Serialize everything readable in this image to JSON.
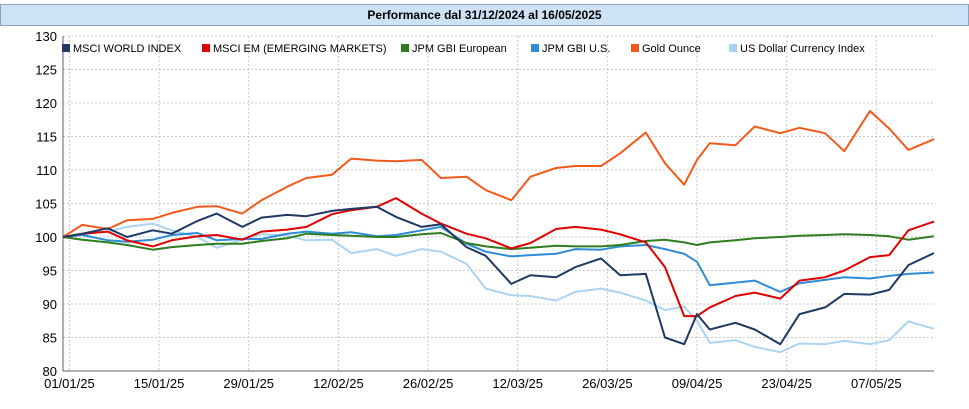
{
  "header": {
    "title": "Performance dal 31/12/2024 al 16/05/2025"
  },
  "chart_data": {
    "type": "line",
    "title": "Performance dal 31/12/2024 al 16/05/2025",
    "ylim": [
      80,
      130
    ],
    "y_ticks": [
      80,
      85,
      90,
      95,
      100,
      105,
      110,
      115,
      120,
      125,
      130
    ],
    "x_ticks": [
      "01/01/25",
      "15/01/25",
      "29/01/25",
      "12/02/25",
      "26/02/25",
      "12/03/25",
      "26/03/25",
      "09/04/25",
      "23/04/25",
      "07/05/25"
    ],
    "grid": true,
    "legend_position": "top",
    "x_start": "31/12/2024",
    "x_end": "16/05/2025",
    "series": [
      {
        "name": "MSCI WORLD INDEX",
        "color": "#1f3864",
        "points": [
          [
            "31/12/2024",
            100
          ],
          [
            "03/01/2025",
            100.5
          ],
          [
            "07/01/2025",
            101.3
          ],
          [
            "10/01/2025",
            100
          ],
          [
            "14/01/2025",
            101
          ],
          [
            "17/01/2025",
            100.5
          ],
          [
            "21/01/2025",
            102.4
          ],
          [
            "24/01/2025",
            103.5
          ],
          [
            "28/01/2025",
            101.5
          ],
          [
            "31/01/2025",
            102.9
          ],
          [
            "04/02/2025",
            103.3
          ],
          [
            "07/02/2025",
            103.1
          ],
          [
            "11/02/2025",
            103.9
          ],
          [
            "14/02/2025",
            104.2
          ],
          [
            "18/02/2025",
            104.5
          ],
          [
            "21/02/2025",
            103
          ],
          [
            "25/02/2025",
            101.5
          ],
          [
            "28/02/2025",
            101.9
          ],
          [
            "04/03/2025",
            98.5
          ],
          [
            "07/03/2025",
            97.2
          ],
          [
            "11/03/2025",
            93
          ],
          [
            "14/03/2025",
            94.3
          ],
          [
            "18/03/2025",
            94
          ],
          [
            "21/03/2025",
            95.5
          ],
          [
            "25/03/2025",
            96.8
          ],
          [
            "28/03/2025",
            94.3
          ],
          [
            "01/04/2025",
            94.5
          ],
          [
            "04/04/2025",
            85
          ],
          [
            "07/04/2025",
            84
          ],
          [
            "09/04/2025",
            88.5
          ],
          [
            "11/04/2025",
            86.2
          ],
          [
            "15/04/2025",
            87.2
          ],
          [
            "18/04/2025",
            86.2
          ],
          [
            "22/04/2025",
            84
          ],
          [
            "25/04/2025",
            88.5
          ],
          [
            "29/04/2025",
            89.5
          ],
          [
            "02/05/2025",
            91.5
          ],
          [
            "06/05/2025",
            91.4
          ],
          [
            "09/05/2025",
            92.1
          ],
          [
            "12/05/2025",
            95.8
          ],
          [
            "16/05/2025",
            97.6
          ]
        ]
      },
      {
        "name": "MSCI EM (EMERGING MARKETS)",
        "color": "#e00000",
        "points": [
          [
            "31/12/2024",
            100
          ],
          [
            "03/01/2025",
            100.5
          ],
          [
            "07/01/2025",
            100.8
          ],
          [
            "10/01/2025",
            99.5
          ],
          [
            "14/01/2025",
            98.6
          ],
          [
            "17/01/2025",
            99.5
          ],
          [
            "21/01/2025",
            100.1
          ],
          [
            "24/01/2025",
            100.3
          ],
          [
            "28/01/2025",
            99.6
          ],
          [
            "31/01/2025",
            100.8
          ],
          [
            "04/02/2025",
            101.1
          ],
          [
            "07/02/2025",
            101.5
          ],
          [
            "11/02/2025",
            103.4
          ],
          [
            "14/02/2025",
            104
          ],
          [
            "18/02/2025",
            104.5
          ],
          [
            "21/02/2025",
            105.8
          ],
          [
            "25/02/2025",
            103.5
          ],
          [
            "28/02/2025",
            102
          ],
          [
            "04/03/2025",
            100.5
          ],
          [
            "07/03/2025",
            99.8
          ],
          [
            "11/03/2025",
            98.3
          ],
          [
            "14/03/2025",
            99.1
          ],
          [
            "18/03/2025",
            101.2
          ],
          [
            "21/03/2025",
            101.5
          ],
          [
            "25/03/2025",
            101.1
          ],
          [
            "28/03/2025",
            100.4
          ],
          [
            "01/04/2025",
            99.2
          ],
          [
            "04/04/2025",
            95.5
          ],
          [
            "07/04/2025",
            88.2
          ],
          [
            "09/04/2025",
            88.2
          ],
          [
            "11/04/2025",
            89.5
          ],
          [
            "15/04/2025",
            91.2
          ],
          [
            "18/04/2025",
            91.7
          ],
          [
            "22/04/2025",
            90.8
          ],
          [
            "25/04/2025",
            93.5
          ],
          [
            "29/04/2025",
            94
          ],
          [
            "02/05/2025",
            95
          ],
          [
            "06/05/2025",
            97
          ],
          [
            "09/05/2025",
            97.3
          ],
          [
            "12/05/2025",
            101
          ],
          [
            "16/05/2025",
            102.3
          ]
        ]
      },
      {
        "name": "JPM GBI European",
        "color": "#2e7d1e",
        "points": [
          [
            "31/12/2024",
            100
          ],
          [
            "03/01/2025",
            99.6
          ],
          [
            "07/01/2025",
            99.2
          ],
          [
            "10/01/2025",
            98.8
          ],
          [
            "14/01/2025",
            98.1
          ],
          [
            "17/01/2025",
            98.5
          ],
          [
            "21/01/2025",
            98.8
          ],
          [
            "24/01/2025",
            99
          ],
          [
            "28/01/2025",
            99
          ],
          [
            "31/01/2025",
            99.4
          ],
          [
            "04/02/2025",
            99.8
          ],
          [
            "07/02/2025",
            100.5
          ],
          [
            "11/02/2025",
            100.3
          ],
          [
            "14/02/2025",
            100.2
          ],
          [
            "18/02/2025",
            100
          ],
          [
            "21/02/2025",
            100
          ],
          [
            "25/02/2025",
            100.4
          ],
          [
            "28/02/2025",
            100.6
          ],
          [
            "04/03/2025",
            99.1
          ],
          [
            "07/03/2025",
            98.6
          ],
          [
            "11/03/2025",
            98.2
          ],
          [
            "14/03/2025",
            98.4
          ],
          [
            "18/03/2025",
            98.7
          ],
          [
            "21/03/2025",
            98.6
          ],
          [
            "25/03/2025",
            98.6
          ],
          [
            "28/03/2025",
            98.8
          ],
          [
            "01/04/2025",
            99.4
          ],
          [
            "04/04/2025",
            99.6
          ],
          [
            "07/04/2025",
            99.2
          ],
          [
            "09/04/2025",
            98.8
          ],
          [
            "11/04/2025",
            99.2
          ],
          [
            "15/04/2025",
            99.5
          ],
          [
            "18/04/2025",
            99.8
          ],
          [
            "22/04/2025",
            100
          ],
          [
            "25/04/2025",
            100.2
          ],
          [
            "29/04/2025",
            100.3
          ],
          [
            "02/05/2025",
            100.4
          ],
          [
            "06/05/2025",
            100.3
          ],
          [
            "09/05/2025",
            100.1
          ],
          [
            "12/05/2025",
            99.6
          ],
          [
            "16/05/2025",
            100.1
          ]
        ]
      },
      {
        "name": "JPM GBI U.S.",
        "color": "#2e8bd6",
        "points": [
          [
            "31/12/2024",
            100
          ],
          [
            "03/01/2025",
            100.3
          ],
          [
            "07/01/2025",
            99.5
          ],
          [
            "10/01/2025",
            99.3
          ],
          [
            "14/01/2025",
            99.6
          ],
          [
            "17/01/2025",
            100.3
          ],
          [
            "21/01/2025",
            100.6
          ],
          [
            "24/01/2025",
            99.5
          ],
          [
            "28/01/2025",
            99.7
          ],
          [
            "31/01/2025",
            99.7
          ],
          [
            "04/02/2025",
            100.5
          ],
          [
            "07/02/2025",
            100.8
          ],
          [
            "11/02/2025",
            100.5
          ],
          [
            "14/02/2025",
            100.7
          ],
          [
            "18/02/2025",
            100.1
          ],
          [
            "21/02/2025",
            100.3
          ],
          [
            "25/02/2025",
            101
          ],
          [
            "28/02/2025",
            101.5
          ],
          [
            "04/03/2025",
            99
          ],
          [
            "07/03/2025",
            97.8
          ],
          [
            "11/03/2025",
            97.1
          ],
          [
            "14/03/2025",
            97.3
          ],
          [
            "18/03/2025",
            97.5
          ],
          [
            "21/03/2025",
            98.2
          ],
          [
            "25/03/2025",
            98.1
          ],
          [
            "28/03/2025",
            98.6
          ],
          [
            "01/04/2025",
            98.8
          ],
          [
            "04/04/2025",
            98.2
          ],
          [
            "07/04/2025",
            97.5
          ],
          [
            "09/04/2025",
            96.3
          ],
          [
            "11/04/2025",
            92.8
          ],
          [
            "15/04/2025",
            93.2
          ],
          [
            "18/04/2025",
            93.5
          ],
          [
            "22/04/2025",
            91.8
          ],
          [
            "25/04/2025",
            93.1
          ],
          [
            "29/04/2025",
            93.6
          ],
          [
            "02/05/2025",
            94
          ],
          [
            "06/05/2025",
            93.8
          ],
          [
            "09/05/2025",
            94.2
          ],
          [
            "12/05/2025",
            94.5
          ],
          [
            "16/05/2025",
            94.7
          ]
        ]
      },
      {
        "name": "Gold Ounce",
        "color": "#f25a1c",
        "points": [
          [
            "31/12/2024",
            100
          ],
          [
            "03/01/2025",
            101.8
          ],
          [
            "07/01/2025",
            101.2
          ],
          [
            "10/01/2025",
            102.5
          ],
          [
            "14/01/2025",
            102.7
          ],
          [
            "17/01/2025",
            103.6
          ],
          [
            "21/01/2025",
            104.5
          ],
          [
            "24/01/2025",
            104.6
          ],
          [
            "28/01/2025",
            103.5
          ],
          [
            "31/01/2025",
            105.5
          ],
          [
            "04/02/2025",
            107.5
          ],
          [
            "07/02/2025",
            108.8
          ],
          [
            "11/02/2025",
            109.3
          ],
          [
            "14/02/2025",
            111.7
          ],
          [
            "18/02/2025",
            111.4
          ],
          [
            "21/02/2025",
            111.3
          ],
          [
            "25/02/2025",
            111.5
          ],
          [
            "28/02/2025",
            108.8
          ],
          [
            "04/03/2025",
            109
          ],
          [
            "07/03/2025",
            107
          ],
          [
            "11/03/2025",
            105.5
          ],
          [
            "14/03/2025",
            109
          ],
          [
            "18/03/2025",
            110.3
          ],
          [
            "21/03/2025",
            110.6
          ],
          [
            "25/03/2025",
            110.6
          ],
          [
            "28/03/2025",
            112.5
          ],
          [
            "01/04/2025",
            115.6
          ],
          [
            "04/04/2025",
            111
          ],
          [
            "07/04/2025",
            107.8
          ],
          [
            "09/04/2025",
            111.5
          ],
          [
            "11/04/2025",
            114
          ],
          [
            "15/04/2025",
            113.7
          ],
          [
            "18/04/2025",
            116.5
          ],
          [
            "22/04/2025",
            115.5
          ],
          [
            "25/04/2025",
            116.3
          ],
          [
            "29/04/2025",
            115.5
          ],
          [
            "02/05/2025",
            112.8
          ],
          [
            "06/05/2025",
            118.8
          ],
          [
            "09/05/2025",
            116.2
          ],
          [
            "12/05/2025",
            113
          ],
          [
            "16/05/2025",
            114.6
          ]
        ]
      },
      {
        "name": "US Dollar Currency Index",
        "color": "#a9d4f2",
        "points": [
          [
            "31/12/2024",
            100
          ],
          [
            "03/01/2025",
            100.4
          ],
          [
            "07/01/2025",
            100.8
          ],
          [
            "10/01/2025",
            101.5
          ],
          [
            "14/01/2025",
            102
          ],
          [
            "17/01/2025",
            101
          ],
          [
            "21/01/2025",
            100
          ],
          [
            "24/01/2025",
            98.4
          ],
          [
            "28/01/2025",
            99.6
          ],
          [
            "31/01/2025",
            100.4
          ],
          [
            "04/02/2025",
            100.2
          ],
          [
            "07/02/2025",
            99.5
          ],
          [
            "11/02/2025",
            99.6
          ],
          [
            "14/02/2025",
            97.6
          ],
          [
            "18/02/2025",
            98.2
          ],
          [
            "21/02/2025",
            97.2
          ],
          [
            "25/02/2025",
            98.2
          ],
          [
            "28/02/2025",
            97.8
          ],
          [
            "04/03/2025",
            96
          ],
          [
            "07/03/2025",
            92.3
          ],
          [
            "11/03/2025",
            91.3
          ],
          [
            "14/03/2025",
            91.2
          ],
          [
            "18/03/2025",
            90.5
          ],
          [
            "21/03/2025",
            91.8
          ],
          [
            "25/03/2025",
            92.3
          ],
          [
            "28/03/2025",
            91.7
          ],
          [
            "01/04/2025",
            90.5
          ],
          [
            "04/04/2025",
            89.1
          ],
          [
            "07/04/2025",
            89.6
          ],
          [
            "09/04/2025",
            87.5
          ],
          [
            "11/04/2025",
            84.2
          ],
          [
            "15/04/2025",
            84.6
          ],
          [
            "18/04/2025",
            83.6
          ],
          [
            "22/04/2025",
            82.8
          ],
          [
            "25/04/2025",
            84.1
          ],
          [
            "29/04/2025",
            84
          ],
          [
            "02/05/2025",
            84.5
          ],
          [
            "06/05/2025",
            84
          ],
          [
            "09/05/2025",
            84.6
          ],
          [
            "12/05/2025",
            87.4
          ],
          [
            "16/05/2025",
            86.3
          ]
        ]
      }
    ]
  }
}
